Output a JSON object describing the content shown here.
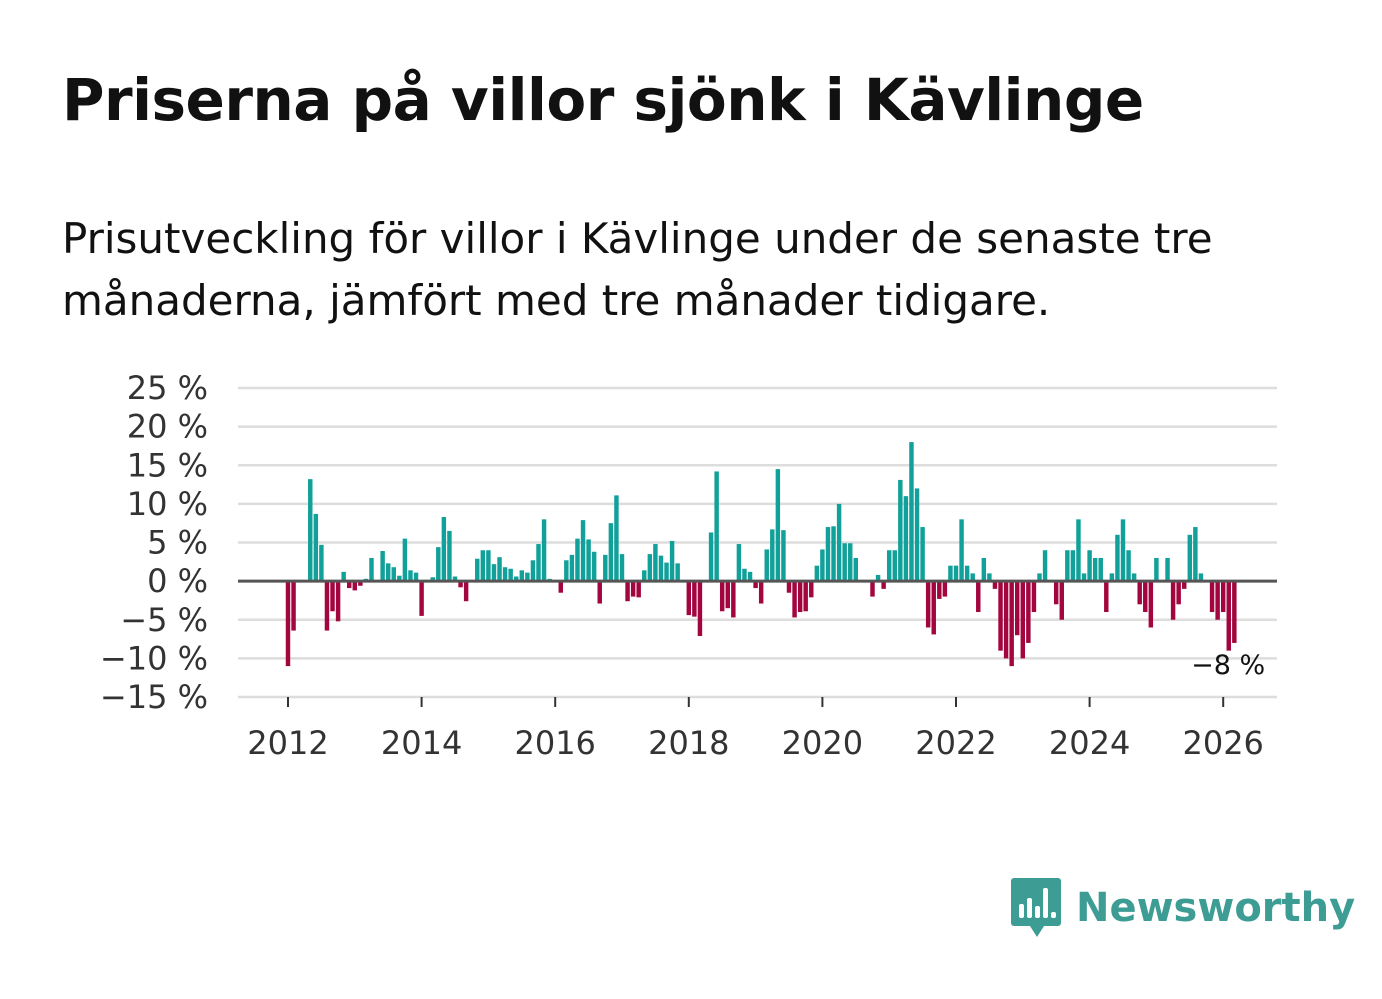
{
  "title": "Priserna på villor sjönk i Kävlinge",
  "subtitle": "Prisutveckling för villor i Kävlinge under de senaste tre månaderna, jämfört med tre månader tidigare.",
  "brand": {
    "name": "Newsworthy",
    "color": "#3d9c93",
    "icon": "newsworthy-logo-icon"
  },
  "chart_data": {
    "type": "bar",
    "title": "Priserna på villor sjönk i Kävlinge",
    "xlabel": "",
    "ylabel": "",
    "ylim": [
      -15,
      25
    ],
    "y_ticks": [
      25,
      20,
      15,
      10,
      5,
      0,
      -5,
      -10,
      -15
    ],
    "y_tick_labels": [
      "25 %",
      "20 %",
      "15 %",
      "10 %",
      "5 %",
      "0 %",
      "−5 %",
      "−10 %",
      "−15 %"
    ],
    "x_ticks": [
      2012,
      2014,
      2016,
      2018,
      2020,
      2022,
      2024,
      2026
    ],
    "x_tick_labels": [
      "2012",
      "2014",
      "2016",
      "2018",
      "2020",
      "2022",
      "2024",
      "2026"
    ],
    "start": "2012-01",
    "frequency": "monthly",
    "positive_color": "#12a19a",
    "negative_color": "#a3063e",
    "annotation": {
      "label": "−8 %",
      "value": -8,
      "date": "2026-01"
    },
    "values": [
      -11,
      -6.4,
      0,
      0,
      13.2,
      8.7,
      4.7,
      -6.4,
      -3.9,
      -5.2,
      1.2,
      -0.9,
      -1.2,
      -0.6,
      0.3,
      3,
      0,
      3.9,
      2.3,
      1.8,
      0.7,
      5.5,
      1.4,
      1.1,
      -4.5,
      0,
      0.5,
      4.4,
      8.3,
      6.5,
      0.6,
      -0.8,
      -2.6,
      0,
      2.9,
      4,
      4,
      2.2,
      3.1,
      1.8,
      1.6,
      0.6,
      1.4,
      1.1,
      2.7,
      4.8,
      8,
      0.3,
      0,
      -1.5,
      2.7,
      3.4,
      5.5,
      7.9,
      5.4,
      3.8,
      -2.9,
      3.4,
      7.5,
      11.1,
      3.5,
      -2.6,
      -2,
      -2.1,
      1.4,
      3.5,
      4.8,
      3.3,
      2.4,
      5.2,
      2.3,
      0,
      -4.4,
      -4.6,
      -7.1,
      0,
      6.3,
      14.2,
      -3.9,
      -3.5,
      -4.7,
      4.8,
      1.6,
      1.2,
      -0.9,
      -2.9,
      4.1,
      6.7,
      14.5,
      6.6,
      -1.5,
      -4.7,
      -4,
      -3.9,
      -2.1,
      2,
      4.1,
      7,
      7.1,
      10,
      4.9,
      4.9,
      3,
      0,
      0,
      -2,
      0.8,
      -1,
      4,
      4,
      13.1,
      11,
      18,
      12,
      7,
      -6,
      -6.9,
      -2.3,
      -2,
      2,
      2,
      8,
      2,
      1,
      -4,
      3,
      1,
      -1,
      -9,
      -10,
      -11,
      -7,
      -10,
      -8,
      -4,
      1,
      4,
      0,
      -3,
      -5,
      4,
      4,
      8,
      1,
      4,
      3,
      3,
      -4,
      1,
      6,
      8,
      4,
      1,
      -3,
      -4,
      -6,
      3,
      0,
      3,
      -5,
      -3,
      -1,
      6,
      7,
      1,
      0,
      -4,
      -5,
      -4,
      -9,
      -8
    ]
  }
}
